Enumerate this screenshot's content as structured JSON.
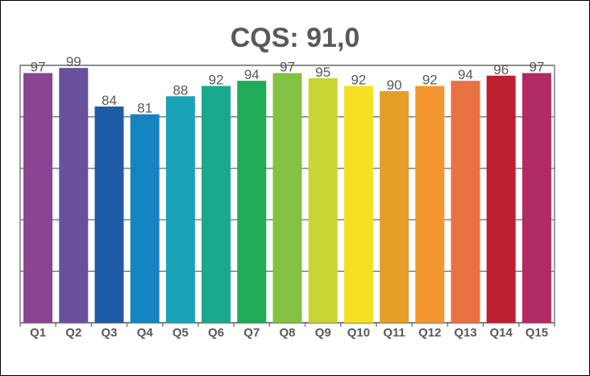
{
  "chart_data": {
    "type": "bar",
    "title": "CQS: 91,0",
    "xlabel": "",
    "ylabel": "",
    "ylim": [
      0,
      100
    ],
    "grid": true,
    "legend": "none",
    "categories": [
      "Q1",
      "Q2",
      "Q3",
      "Q4",
      "Q5",
      "Q6",
      "Q7",
      "Q8",
      "Q9",
      "Q10",
      "Q11",
      "Q12",
      "Q13",
      "Q14",
      "Q15"
    ],
    "values": [
      97,
      99,
      84,
      81,
      88,
      92,
      94,
      97,
      95,
      92,
      90,
      92,
      94,
      96,
      97
    ],
    "colors": [
      "#8B4393",
      "#68519C",
      "#1E5CA8",
      "#1484C1",
      "#1AA2B6",
      "#1AA88E",
      "#21AA57",
      "#83C142",
      "#C6D533",
      "#F6E024",
      "#E59E27",
      "#F3962F",
      "#EA7141",
      "#BC2030",
      "#B12B63"
    ]
  }
}
